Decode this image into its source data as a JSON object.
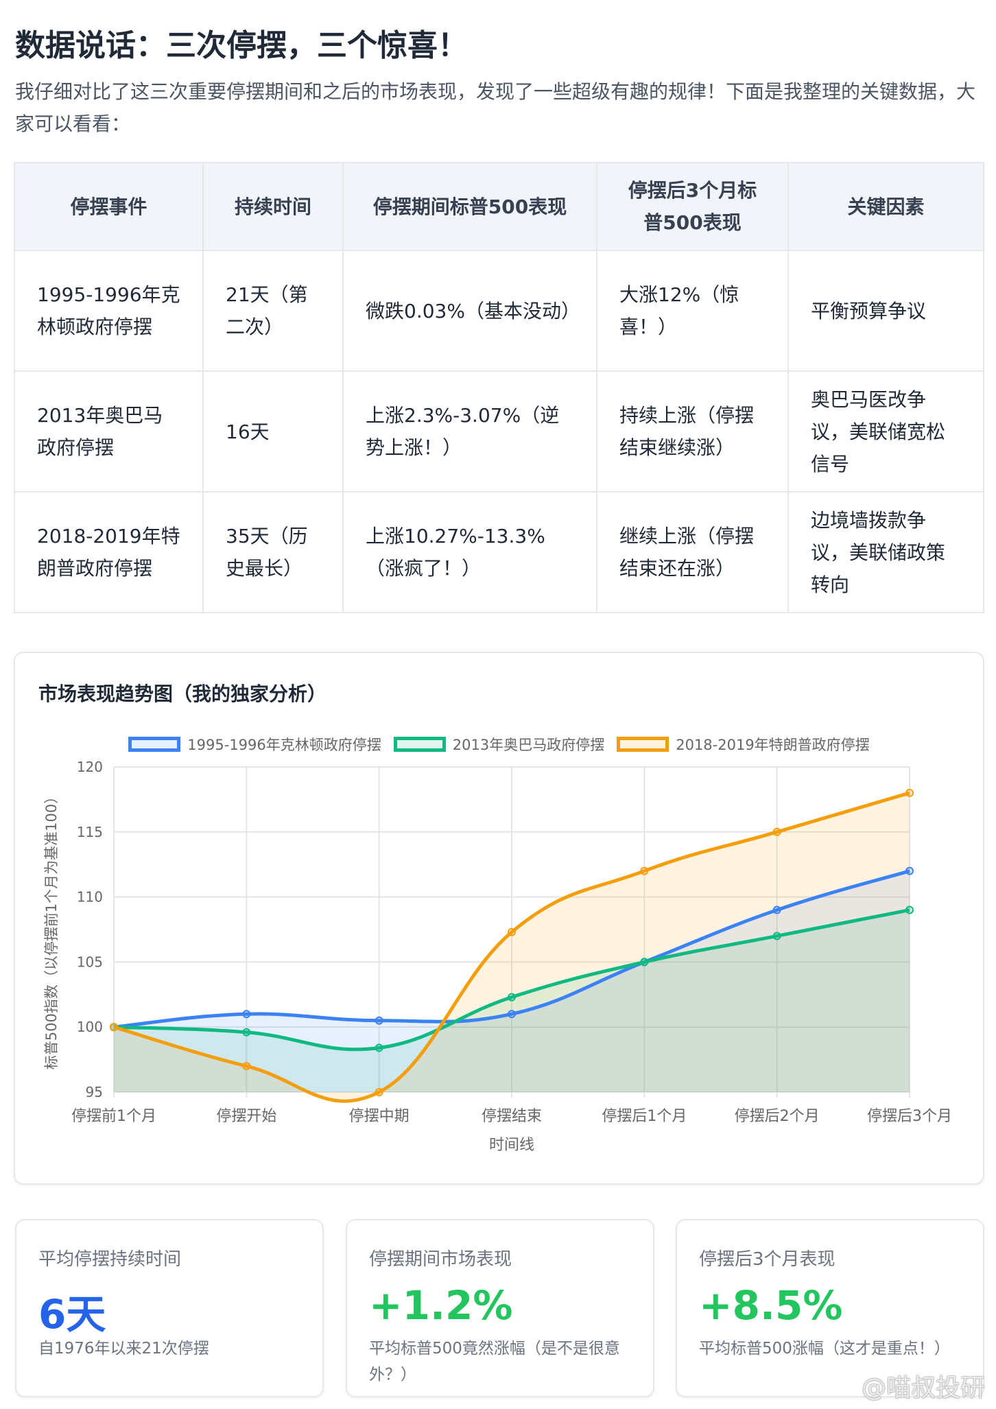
{
  "title": "数据说话：三次停摆，三个惊喜！",
  "intro": "我仔细对比了这三次重要停摆期间和之后的市场表现，发现了一些超级有趣的规律！下面是我整理的关键数据，大家可以看看：",
  "table": {
    "headers": [
      "停摆事件",
      "持续时间",
      "停摆期间标普500表现",
      "停摆后3个月标普500表现",
      "关键因素"
    ],
    "rows": [
      [
        "1995-1996年克林顿政府停摆",
        "21天（第二次）",
        "微跌0.03%（基本没动）",
        "大涨12%（惊喜！）",
        "平衡预算争议"
      ],
      [
        "2013年奥巴马政府停摆",
        "16天",
        "上涨2.3%-3.07%（逆势上涨！）",
        "持续上涨（停摆结束继续涨）",
        "奥巴马医改争议，美联储宽松信号"
      ],
      [
        "2018-2019年特朗普政府停摆",
        "35天（历史最长）",
        "上涨10.27%-13.3%（涨疯了！）",
        "继续上涨（停摆结束还在涨）",
        "边境墙拨款争议，美联储政策转向"
      ]
    ]
  },
  "chart_data": {
    "type": "line",
    "title": "市场表现趋势图（我的独家分析）",
    "xlabel": "时间线",
    "ylabel": "标普500指数（以停摆前1个月为基准100）",
    "categories": [
      "停摆前1个月",
      "停摆开始",
      "停摆中期",
      "停摆结束",
      "停摆后1个月",
      "停摆后2个月",
      "停摆后3个月"
    ],
    "ylim": [
      95,
      120
    ],
    "yticks": [
      95,
      100,
      105,
      110,
      115,
      120
    ],
    "grid": true,
    "legend_position": "top",
    "fill": true,
    "series": [
      {
        "name": "1995-1996年克林顿政府停摆",
        "color": "#3b82f6",
        "values": [
          100,
          101,
          100.5,
          101,
          105,
          109,
          112
        ]
      },
      {
        "name": "2013年奥巴马政府停摆",
        "color": "#10b981",
        "values": [
          100,
          99.6,
          98.4,
          102.3,
          105,
          107,
          109
        ]
      },
      {
        "name": "2018-2019年特朗普政府停摆",
        "color": "#f59e0b",
        "values": [
          100,
          97,
          95,
          107.3,
          112,
          115,
          118
        ]
      }
    ]
  },
  "stats": [
    {
      "label": "平均停摆持续时间",
      "value": "6天",
      "sub": "自1976年以来21次停摆",
      "color": "#2563eb"
    },
    {
      "label": "停摆期间市场表现",
      "value": "+1.2%",
      "sub": "平均标普500竟然涨幅（是不是很意外？）",
      "color": "#22c55e"
    },
    {
      "label": "停摆后3个月表现",
      "value": "+8.5%",
      "sub": "平均标普500涨幅（这才是重点！）",
      "color": "#22c55e"
    }
  ],
  "watermark": "@喵叔投研"
}
